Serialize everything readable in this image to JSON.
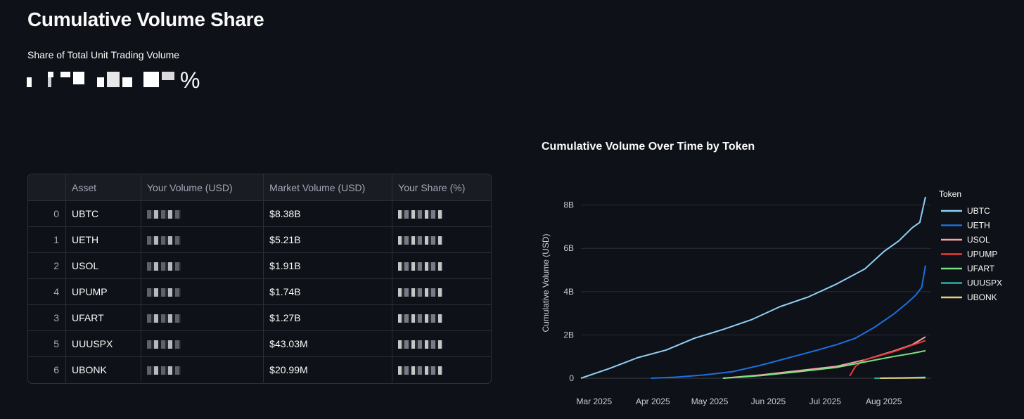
{
  "header": {
    "title": "Cumulative Volume Share",
    "metric_label": "Share of Total Unit Trading Volume",
    "metric_suffix": "%"
  },
  "table": {
    "columns": [
      "",
      "Asset",
      "Your Volume (USD)",
      "Market Volume (USD)",
      "Your Share (%)"
    ],
    "rows": [
      {
        "index": "0",
        "asset": "UBTC",
        "market_volume": "$8.38B"
      },
      {
        "index": "1",
        "asset": "UETH",
        "market_volume": "$5.21B"
      },
      {
        "index": "2",
        "asset": "USOL",
        "market_volume": "$1.91B"
      },
      {
        "index": "4",
        "asset": "UPUMP",
        "market_volume": "$1.74B"
      },
      {
        "index": "3",
        "asset": "UFART",
        "market_volume": "$1.27B"
      },
      {
        "index": "5",
        "asset": "UUUSPX",
        "market_volume": "$43.03M"
      },
      {
        "index": "6",
        "asset": "UBONK",
        "market_volume": "$20.99M"
      }
    ]
  },
  "chart_data": {
    "type": "line",
    "title": "Cumulative Volume Over Time by Token",
    "xlabel": "",
    "ylabel": "Cumulative Volume (USD)",
    "ylim": [
      0,
      8800000000
    ],
    "yticks": [
      0,
      2000000000,
      4000000000,
      6000000000,
      8000000000
    ],
    "ytick_labels": [
      "0",
      "2B",
      "4B",
      "6B",
      "8B"
    ],
    "xlim": [
      0,
      185
    ],
    "xticks": [
      7,
      38,
      68,
      99,
      129,
      160
    ],
    "xtick_labels": [
      "Mar 2025",
      "Apr 2025",
      "May 2025",
      "Jun 2025",
      "Jul 2025",
      "Aug 2025"
    ],
    "legend_title": "Token",
    "legend_position": "top-right",
    "series": [
      {
        "name": "UBTC",
        "color": "#8fd0f5",
        "x": [
          0,
          15,
          30,
          45,
          60,
          75,
          90,
          105,
          120,
          135,
          150,
          160,
          168,
          175,
          179,
          182
        ],
        "y": [
          0,
          0.45,
          0.95,
          1.3,
          1.85,
          2.25,
          2.7,
          3.3,
          3.75,
          4.35,
          5.05,
          5.85,
          6.35,
          6.95,
          7.2,
          8.38
        ]
      },
      {
        "name": "UETH",
        "color": "#1c6fe0",
        "x": [
          37,
          50,
          65,
          80,
          95,
          110,
          125,
          135,
          145,
          155,
          165,
          172,
          177,
          180,
          182
        ],
        "y": [
          0,
          0.05,
          0.15,
          0.3,
          0.6,
          0.95,
          1.3,
          1.55,
          1.85,
          2.35,
          2.95,
          3.45,
          3.85,
          4.2,
          5.21
        ]
      },
      {
        "name": "USOL",
        "color": "#f5a3a8",
        "x": [
          75,
          95,
          115,
          135,
          150,
          165,
          175,
          182
        ],
        "y": [
          0,
          0.15,
          0.35,
          0.55,
          0.85,
          1.25,
          1.55,
          1.91
        ]
      },
      {
        "name": "UPUMP",
        "color": "#ed3a3a",
        "x": [
          142,
          145,
          150,
          158,
          166,
          174,
          182
        ],
        "y": [
          0.1,
          0.55,
          0.85,
          1.05,
          1.25,
          1.5,
          1.74
        ]
      },
      {
        "name": "UFART",
        "color": "#7ae085",
        "x": [
          75,
          95,
          115,
          135,
          150,
          165,
          175,
          182
        ],
        "y": [
          0,
          0.12,
          0.3,
          0.5,
          0.75,
          1.0,
          1.15,
          1.27
        ]
      },
      {
        "name": "UUUSPX",
        "color": "#28b3a4",
        "x": [
          155,
          170,
          182
        ],
        "y": [
          0,
          0.02,
          0.043
        ]
      },
      {
        "name": "UBONK",
        "color": "#e8d27a",
        "x": [
          158,
          170,
          182
        ],
        "y": [
          0,
          0.01,
          0.021
        ]
      }
    ]
  }
}
